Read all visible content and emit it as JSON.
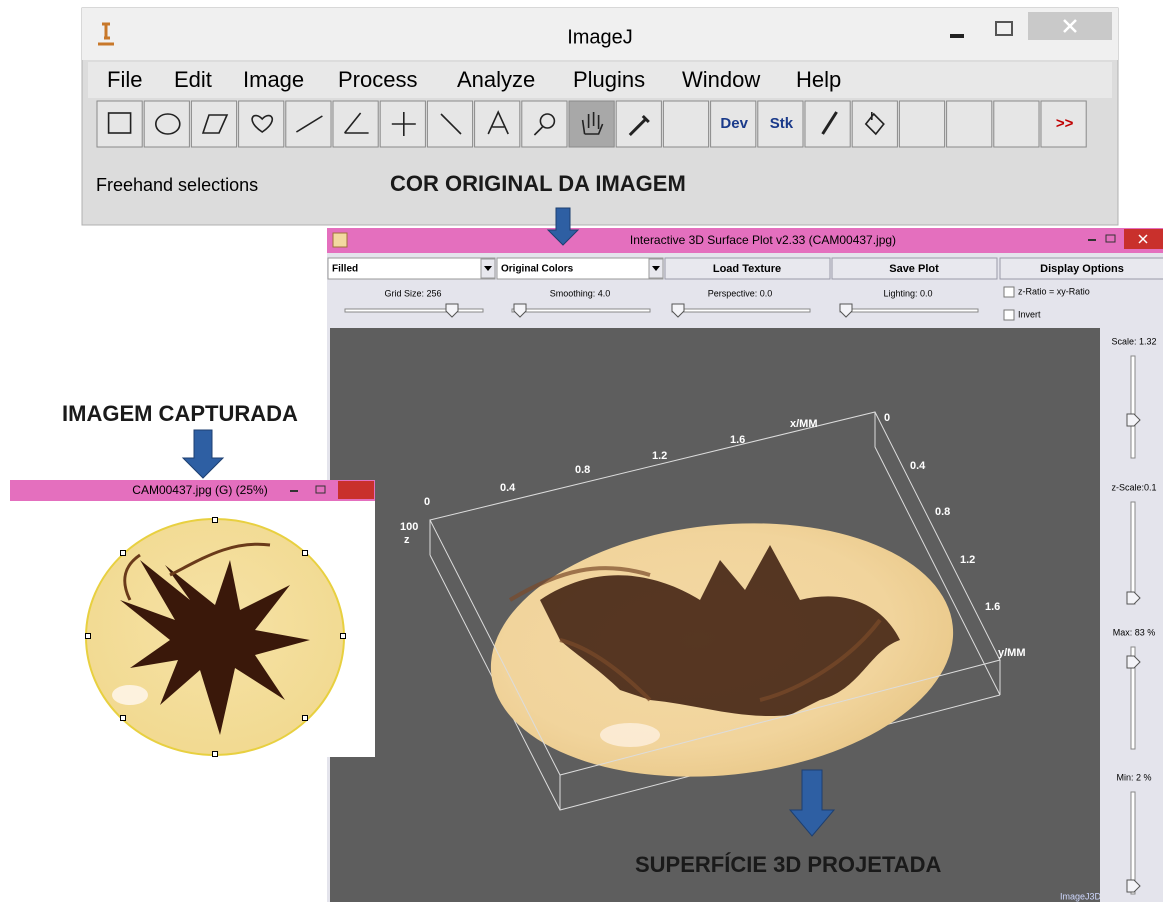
{
  "annotations": {
    "original_color": "COR ORIGINAL DA IMAGEM",
    "captured": "IMAGEM CAPTURADA",
    "projected": "SUPERFÍCIE 3D PROJETADA"
  },
  "imagej": {
    "title": "ImageJ",
    "menu": [
      "File",
      "Edit",
      "Image",
      "Process",
      "Analyze",
      "Plugins",
      "Window",
      "Help"
    ],
    "tool_labels": [
      "Dev",
      "Stk",
      ">>"
    ],
    "status": "Freehand selections"
  },
  "image_window": {
    "title": "CAM00437.jpg (G) (25%)"
  },
  "surface_plot": {
    "title": "Interactive 3D Surface Plot v2.33  (CAM00437.jpg)",
    "mode": "Filled",
    "colors": "Original Colors",
    "buttons": [
      "Load Texture",
      "Save Plot",
      "Display Options"
    ],
    "sliders": [
      "Grid Size: 256",
      "Smoothing: 4.0",
      "Perspective: 0.0",
      "Lighting: 0.0"
    ],
    "checkboxes": [
      "z-Ratio = xy-Ratio",
      "Invert"
    ],
    "side_sliders": [
      "Scale: 1.32",
      "z-Scale:0.1",
      "Max: 83 %",
      "Min: 2 %"
    ],
    "x_label": "x/MM",
    "x_ticks": [
      "0",
      "0.4",
      "0.8",
      "1.2",
      "1.6"
    ],
    "y_label": "y/MM",
    "y_ticks": [
      "0",
      "0.4",
      "0.8",
      "1.2",
      "1.6"
    ],
    "z_label": "z",
    "z_tick": "100",
    "watermark": "ImageJ3D"
  }
}
